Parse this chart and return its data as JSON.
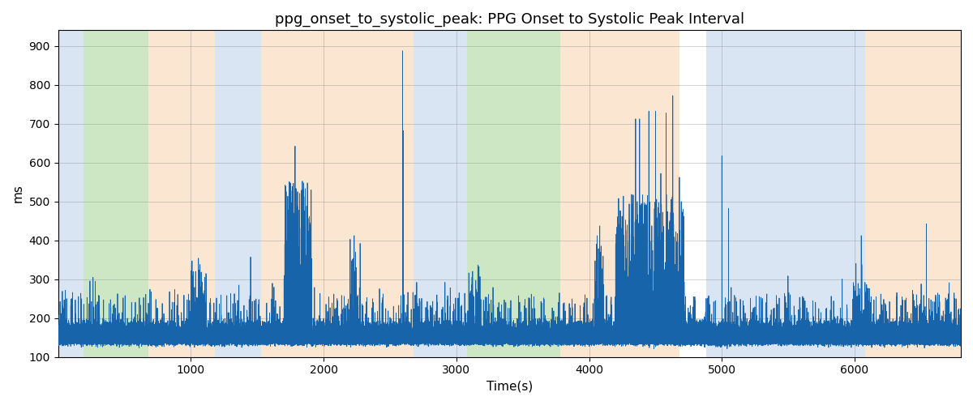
{
  "title": "ppg_onset_to_systolic_peak: PPG Onset to Systolic Peak Interval",
  "xlabel": "Time(s)",
  "ylabel": "ms",
  "ylim": [
    100,
    940
  ],
  "xlim": [
    0,
    6800
  ],
  "background_color": "#ffffff",
  "line_color": "#1764ab",
  "line_width": 0.6,
  "bg_bands": [
    {
      "xmin": 0,
      "xmax": 190,
      "color": "#aec6e8",
      "alpha": 0.45
    },
    {
      "xmin": 190,
      "xmax": 680,
      "color": "#90c97a",
      "alpha": 0.45
    },
    {
      "xmin": 680,
      "xmax": 1180,
      "color": "#f5c99a",
      "alpha": 0.45
    },
    {
      "xmin": 1180,
      "xmax": 1530,
      "color": "#aec6e8",
      "alpha": 0.45
    },
    {
      "xmin": 1530,
      "xmax": 2680,
      "color": "#f5c99a",
      "alpha": 0.45
    },
    {
      "xmin": 2680,
      "xmax": 3080,
      "color": "#aec6e8",
      "alpha": 0.45
    },
    {
      "xmin": 3080,
      "xmax": 3780,
      "color": "#90c97a",
      "alpha": 0.45
    },
    {
      "xmin": 3780,
      "xmax": 4680,
      "color": "#f5c99a",
      "alpha": 0.45
    },
    {
      "xmin": 4880,
      "xmax": 6080,
      "color": "#aec6e8",
      "alpha": 0.45
    },
    {
      "xmin": 6080,
      "xmax": 6800,
      "color": "#f5c99a",
      "alpha": 0.45
    }
  ],
  "yticks": [
    100,
    200,
    300,
    400,
    500,
    600,
    700,
    800,
    900
  ],
  "xticks": [
    1000,
    2000,
    3000,
    4000,
    5000,
    6000
  ],
  "base": 142,
  "base_noise": 5,
  "samples_per_second": 7,
  "total_seconds": 6800,
  "seed": 12345
}
